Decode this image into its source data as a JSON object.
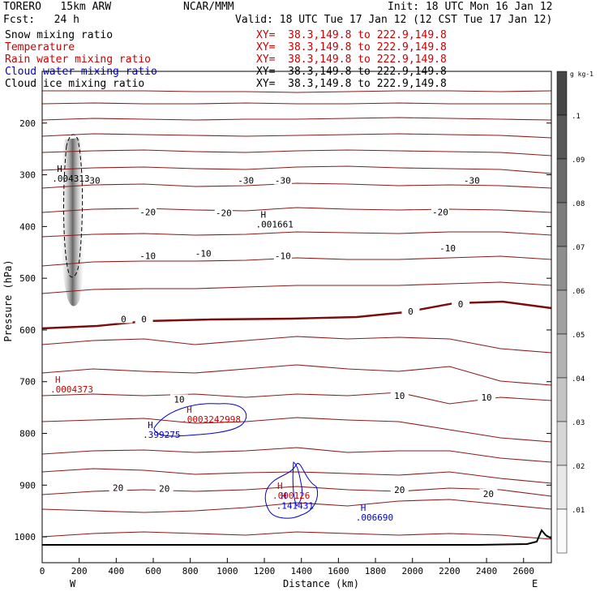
{
  "header": {
    "model": "TORERO   15km ARW",
    "center": "NCAR/MMM",
    "init": "Init: 18 UTC Mon 16 Jan 12",
    "fcst": "Fcst:   24 h",
    "valid": "Valid: 18 UTC Tue 17 Jan 12 (12 CST Tue 17 Jan 12)"
  },
  "legend": [
    {
      "name": "Snow mixing ratio",
      "color": "#000000",
      "xy": "XY=  38.3,149.8 to 222.9,149.8",
      "xy_color": "#cc0000"
    },
    {
      "name": "Temperature",
      "color": "#cc0000",
      "xy": "XY=  38.3,149.8 to 222.9,149.8",
      "xy_color": "#cc0000"
    },
    {
      "name": "Rain water mixing ratio",
      "color": "#cc0000",
      "xy": "XY=  38.3,149.8 to 222.9,149.8",
      "xy_color": "#cc0000"
    },
    {
      "name": "Cloud water mixing ratio",
      "color": "#0000cc",
      "xy": "XY=  38.3,149.8 to 222.9,149.8",
      "xy_color": "#000000"
    },
    {
      "name": "Cloud ice mixing ratio",
      "color": "#000000",
      "xy": "XY=  38.3,149.8 to 222.9,149.8",
      "xy_color": "#000000"
    }
  ],
  "chart_data": {
    "type": "contour-cross-section",
    "xlabel": "Distance (km)",
    "ylabel": "Pressure (hPa)",
    "xlim": [
      0,
      2750
    ],
    "ylim": [
      1050,
      100
    ],
    "xticks": [
      0,
      200,
      400,
      600,
      800,
      1000,
      1200,
      1400,
      1600,
      1800,
      2000,
      2200,
      2400,
      2600
    ],
    "yticks": [
      200,
      300,
      400,
      500,
      600,
      700,
      800,
      900,
      1000
    ],
    "x_end_labels": {
      "left": "W",
      "right": "E"
    },
    "colorbar": {
      "unit": "g kg-1",
      "ticks": [
        ".01",
        ".02",
        ".03",
        ".04",
        ".05",
        ".06",
        ".07",
        ".08",
        ".09",
        ".1"
      ]
    },
    "temperature_labels": [
      {
        "text": "-30",
        "x": 270,
        "p": 314
      },
      {
        "text": "-30",
        "x": 1100,
        "p": 314
      },
      {
        "text": "-30",
        "x": 1300,
        "p": 314
      },
      {
        "text": "-30",
        "x": 2320,
        "p": 314
      },
      {
        "text": "-20",
        "x": 570,
        "p": 375
      },
      {
        "text": "-20",
        "x": 980,
        "p": 377
      },
      {
        "text": "-20",
        "x": 2150,
        "p": 375
      },
      {
        "text": "-10",
        "x": 570,
        "p": 460
      },
      {
        "text": "-10",
        "x": 870,
        "p": 455
      },
      {
        "text": "-10",
        "x": 1300,
        "p": 460
      },
      {
        "text": "-10",
        "x": 2190,
        "p": 445
      },
      {
        "text": "0",
        "x": 440,
        "p": 582
      },
      {
        "text": "0",
        "x": 550,
        "p": 582
      },
      {
        "text": "0",
        "x": 1990,
        "p": 567
      },
      {
        "text": "0",
        "x": 2260,
        "p": 553
      },
      {
        "text": "10",
        "x": 740,
        "p": 737
      },
      {
        "text": "10",
        "x": 1930,
        "p": 730
      },
      {
        "text": "10",
        "x": 2400,
        "p": 733
      },
      {
        "text": "20",
        "x": 410,
        "p": 908
      },
      {
        "text": "20",
        "x": 660,
        "p": 910
      },
      {
        "text": "20",
        "x": 1930,
        "p": 912
      },
      {
        "text": "20",
        "x": 2410,
        "p": 920
      }
    ],
    "extrema": [
      {
        "label": "H",
        "value": ".004313",
        "x": 80,
        "p": 294,
        "color": "#000000"
      },
      {
        "label": "H",
        "value": ".001661",
        "x": 1180,
        "p": 383,
        "color": "#000000"
      },
      {
        "label": "H",
        "value": ".0004373",
        "x": 70,
        "p": 702,
        "color": "#cc0000"
      },
      {
        "label": "H",
        "value": ".399275",
        "x": 570,
        "p": 790,
        "color": "#0000cc"
      },
      {
        "label": "H",
        "value": ".0003242998",
        "x": 780,
        "p": 760,
        "color": "#cc0000"
      },
      {
        "label": "H",
        "value": ".000126",
        "x": 1270,
        "p": 907,
        "color": "#cc0000"
      },
      {
        "label": "H",
        "value": ".141431",
        "x": 1290,
        "p": 927,
        "color": "#0000cc"
      },
      {
        "label": "H",
        "value": ".006690",
        "x": 1720,
        "p": 950,
        "color": "#0000cc"
      }
    ]
  }
}
